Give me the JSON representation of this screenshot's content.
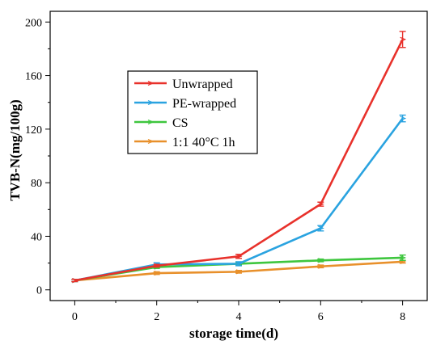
{
  "chart_data": {
    "type": "line",
    "title": "",
    "xlabel": "storage time(d)",
    "ylabel": "TVB-N(mg/100g)",
    "xlim": [
      -0.6,
      8.6
    ],
    "ylim": [
      -8,
      208
    ],
    "xticks": [
      0,
      2,
      4,
      6,
      8
    ],
    "yticks": [
      0,
      40,
      80,
      120,
      160,
      200
    ],
    "x": [
      0,
      2,
      4,
      6,
      8
    ],
    "legend_position": "upper-left inside",
    "series": [
      {
        "name": "Unwrapped",
        "color": "#e8312b",
        "values": [
          7,
          18,
          25,
          64,
          187
        ],
        "errors": [
          0.8,
          1,
          1.5,
          1.5,
          6
        ]
      },
      {
        "name": "PE-wrapped",
        "color": "#2aa3e0",
        "values": [
          7,
          19,
          19.5,
          46,
          128
        ],
        "errors": [
          0.8,
          1.2,
          1.5,
          2,
          2.5
        ]
      },
      {
        "name": "CS",
        "color": "#3ec63e",
        "values": [
          7,
          17,
          19.5,
          22,
          24
        ],
        "errors": [
          0.8,
          1,
          1,
          1,
          2
        ]
      },
      {
        "name": "1:1 40°C 1h",
        "color": "#e8902b",
        "values": [
          7,
          12.5,
          13.5,
          17.5,
          21
        ],
        "errors": [
          0.8,
          1,
          1,
          1,
          1
        ]
      }
    ]
  }
}
